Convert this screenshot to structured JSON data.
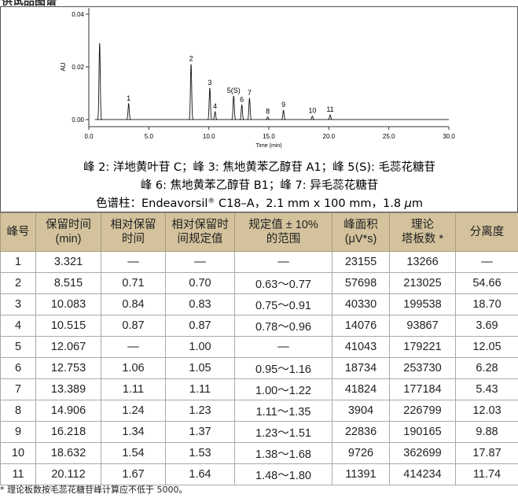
{
  "header": {
    "title": "供试品图谱"
  },
  "chromatogram": {
    "y_label": "AU",
    "x_label": "Time (min)",
    "xlim": [
      0,
      30
    ],
    "ylim": [
      -0.0027,
      0.0424
    ],
    "xticks": [
      {
        "value": 0,
        "label": "0.0"
      },
      {
        "value": 5,
        "label": "5.0"
      },
      {
        "value": 10,
        "label": "10.0"
      },
      {
        "value": 15,
        "label": "15.0"
      },
      {
        "value": 20,
        "label": "20.0"
      },
      {
        "value": 25,
        "label": "25.0"
      },
      {
        "value": 30,
        "label": "30.0"
      }
    ],
    "yticks": [
      {
        "value": 0,
        "label": "0.00"
      },
      {
        "value": 0.02,
        "label": "0.02"
      },
      {
        "value": 0.04,
        "label": "0.04"
      }
    ],
    "peaks": [
      {
        "label": null,
        "time": 0.9,
        "height": 0.029
      },
      {
        "label": "1",
        "time": 3.32,
        "height": 0.006
      },
      {
        "label": "2",
        "time": 8.52,
        "height": 0.021
      },
      {
        "label": "3",
        "time": 10.08,
        "height": 0.012
      },
      {
        "label": "4",
        "time": 10.52,
        "height": 0.003
      },
      {
        "label": "5(S)",
        "time": 12.07,
        "height": 0.009
      },
      {
        "label": "6",
        "time": 12.75,
        "height": 0.0055
      },
      {
        "label": "7",
        "time": 13.39,
        "height": 0.008
      },
      {
        "label": "8",
        "time": 14.91,
        "height": 0.001
      },
      {
        "label": "9",
        "time": 16.22,
        "height": 0.0035
      },
      {
        "label": "10",
        "time": 18.63,
        "height": 0.0013
      },
      {
        "label": "11",
        "time": 20.11,
        "height": 0.0018
      }
    ]
  },
  "captions": [
    [
      "峰 2: 洋地黄叶苷 C；峰 3: 焦地黄苯乙醇苷 A1；峰 5(S): 毛蕊花糖苷"
    ],
    [
      "峰 6: 焦地黄苯乙醇苷 B1；峰 7: 异毛蕊花糖苷"
    ],
    [
      "色谱柱：Endeavorsil",
      "®",
      " C18–A，2.1 mm x 100 mm，1.8 ",
      "μ",
      "m"
    ]
  ],
  "table": {
    "header": [
      [
        "峰号"
      ],
      [
        "保留时间",
        "(min)"
      ],
      [
        "相对保留",
        "时间"
      ],
      [
        "相对保留时",
        "间规定值"
      ],
      [
        "规定值 ± 10%",
        "的范围"
      ],
      [
        "峰面积",
        "(μV*s)"
      ],
      [
        "理论",
        "塔板数 *"
      ],
      [
        "分离度"
      ]
    ],
    "rows": [
      [
        "1",
        "3.321",
        "—",
        "—",
        "—",
        "23155",
        "13266",
        "—"
      ],
      [
        "2",
        "8.515",
        "0.71",
        "0.70",
        "0.63～0.77",
        "57698",
        "213025",
        "54.66"
      ],
      [
        "3",
        "10.083",
        "0.84",
        "0.83",
        "0.75～0.91",
        "40330",
        "199538",
        "18.70"
      ],
      [
        "4",
        "10.515",
        "0.87",
        "0.87",
        "0.78～0.96",
        "14076",
        "93867",
        "3.69"
      ],
      [
        "5",
        "12.067",
        "—",
        "1.00",
        "—",
        "41043",
        "179221",
        "12.05"
      ],
      [
        "6",
        "12.753",
        "1.06",
        "1.05",
        "0.95～1.16",
        "18734",
        "253730",
        "6.28"
      ],
      [
        "7",
        "13.389",
        "1.11",
        "1.11",
        "1.00～1.22",
        "41824",
        "177184",
        "5.43"
      ],
      [
        "8",
        "14.906",
        "1.24",
        "1.23",
        "1.11～1.35",
        "3904",
        "226799",
        "12.03"
      ],
      [
        "9",
        "16.218",
        "1.34",
        "1.37",
        "1.23～1.51",
        "22836",
        "190165",
        "9.88"
      ],
      [
        "10",
        "18.632",
        "1.54",
        "1.53",
        "1.38～1.68",
        "9726",
        "362699",
        "17.87"
      ],
      [
        "11",
        "20.112",
        "1.67",
        "1.64",
        "1.48～1.80",
        "11391",
        "414234",
        "11.74"
      ]
    ]
  },
  "footnote": "* 理论板数按毛蕊花糖苷峰计算应不低于 5000。"
}
